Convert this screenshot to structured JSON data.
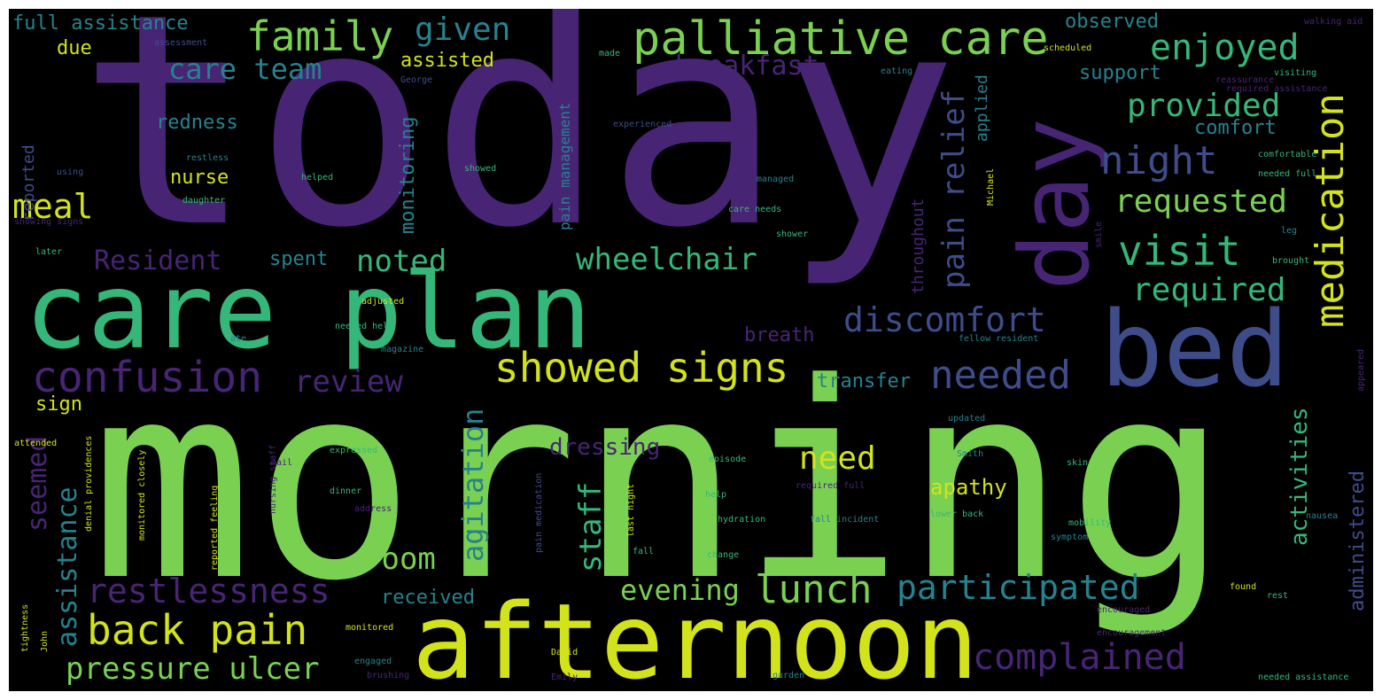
{
  "palette": {
    "background": "#000000",
    "dark_purple": "#482475",
    "blue": "#3e4c8a",
    "teal": "#26828e",
    "green": "#35b779",
    "light_green": "#7ad151",
    "yellow": "#d2e21b"
  },
  "words": {
    "today": "today",
    "morning": "morning",
    "afternoon": "afternoon",
    "care_plan": "care plan",
    "bed": "bed",
    "day": "day",
    "palliative_care": "palliative care",
    "showed_signs": "showed signs",
    "confusion": "confusion",
    "family": "family",
    "given": "given",
    "care_team": "care team",
    "breakfast": "breakfast",
    "enjoyed": "enjoyed",
    "provided": "provided",
    "night": "night",
    "requested": "requested",
    "visit": "visit",
    "required": "required",
    "medication": "medication",
    "meal": "meal",
    "resident": "Resident",
    "noted": "noted",
    "wheelchair": "wheelchair",
    "discomfort": "discomfort",
    "needed": "needed",
    "review": "review",
    "restlessness": "restlessness",
    "back_pain": "back pain",
    "pressure_ulcer": "pressure ulcer",
    "lunch": "lunch",
    "participated": "participated",
    "evening": "evening",
    "complained": "complained",
    "need": "need",
    "apathy": "apathy",
    "room": "room",
    "received": "received",
    "dressing": "dressing",
    "full_assistance": "full assistance",
    "due": "due",
    "assisted": "assisted",
    "redness": "redness",
    "nurse": "nurse",
    "spent": "spent",
    "breath": "breath",
    "transfer": "transfer",
    "sign": "sign",
    "observed": "observed",
    "support": "support",
    "comfort": "comfort",
    "pain_relief": "pain relief",
    "seemed": "seemed",
    "assistance": "assistance",
    "agitation": "agitation",
    "staff": "staff",
    "activities": "activities",
    "administered": "administered",
    "monitoring": "monitoring",
    "pain_management": "pain management",
    "throughout": "throughout",
    "applied": "applied",
    "reported": "reported",
    "assessment": "assessment",
    "made": "made",
    "george": "George",
    "eating": "eating",
    "scheduled": "scheduled",
    "walking_aid": "walking aid",
    "visiting": "visiting",
    "reassurance": "reassurance",
    "experienced": "experienced",
    "restless": "restless",
    "using": "using",
    "helped": "helped",
    "showed": "showed",
    "managed": "managed",
    "daughter": "daughter",
    "comfortable": "comfortable",
    "needed_full": "needed full",
    "care_needs": "care needs",
    "shower": "shower",
    "showing_signs": "showing signs",
    "later": "later",
    "adjusted": "adjusted",
    "needed_help": "needed help",
    "magazine": "magazine",
    "ate": "ate",
    "fellow_resident": "fellow resident",
    "brought": "brought",
    "leg": "leg",
    "michael": "Michael",
    "smile": "smile",
    "updated": "updated",
    "expressed": "expressed",
    "episode": "episode",
    "smith": "Smith",
    "skin": "skin",
    "attended": "attended",
    "denial_providences": "denial providences",
    "monitored_closely": "monitored closely",
    "reported_feeling": "reported feeling",
    "nursing_staff": "nursing staff",
    "dinner": "dinner",
    "address": "address",
    "help": "help",
    "required_full": "required full",
    "hydration": "hydration",
    "fall_incident": "fall incident",
    "lower_back": "lower back",
    "mobility": "mobility",
    "symptom": "symptom",
    "nausea": "nausea",
    "last_night": "last night",
    "pain_medication": "pain medication",
    "fall": "fall",
    "change": "change",
    "tightness": "tightness",
    "john": "John",
    "monitored": "monitored",
    "engaged": "engaged",
    "brushing": "brushing",
    "david": "David",
    "emily": "Emily",
    "garden": "garden",
    "encouraged": "encouraged",
    "encouragement": "encouragement",
    "found": "found",
    "rest": "rest",
    "needed_assistance": "needed assistance",
    "required_assistance": "required assistance",
    "appeared": "appeared",
    "mail": "mail"
  }
}
